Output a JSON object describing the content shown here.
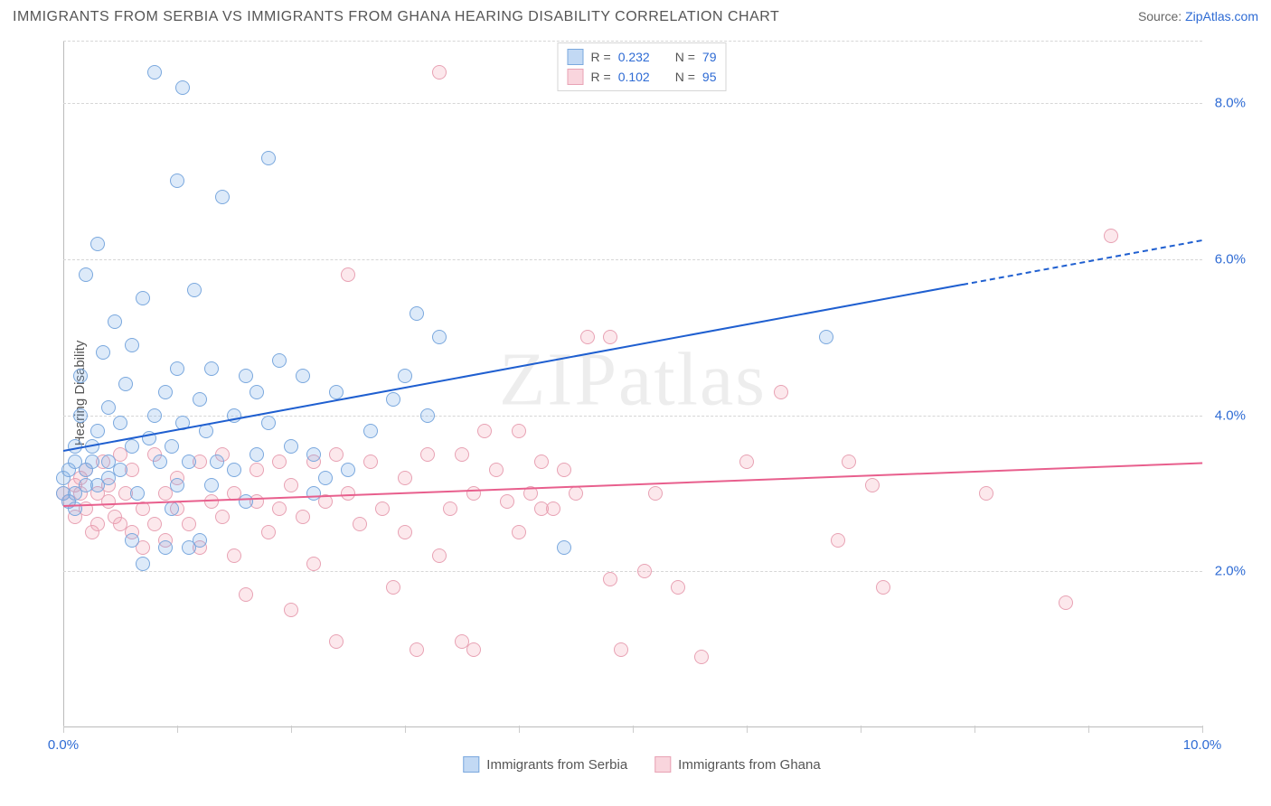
{
  "title": "IMMIGRANTS FROM SERBIA VS IMMIGRANTS FROM GHANA HEARING DISABILITY CORRELATION CHART",
  "source_label": "Source: ",
  "source_name": "ZipAtlas.com",
  "watermark": "ZIPatlas",
  "ylabel": "Hearing Disability",
  "chart": {
    "type": "scatter",
    "xlim": [
      0,
      10
    ],
    "ylim": [
      0,
      8.8
    ],
    "xticks": [
      0.0,
      10.0
    ],
    "xtick_labels": [
      "0.0%",
      "10.0%"
    ],
    "x_minor_ticks": [
      0,
      1,
      2,
      3,
      4,
      5,
      6,
      7,
      8,
      9,
      10
    ],
    "yticks": [
      2.0,
      4.0,
      6.0,
      8.0
    ],
    "ytick_labels": [
      "2.0%",
      "4.0%",
      "6.0%",
      "8.0%"
    ],
    "grid_color": "#d6d6d6",
    "background_color": "#ffffff",
    "marker_size": 16,
    "marker_opacity": 0.25,
    "line_width": 2.5
  },
  "legend_top": {
    "rows": [
      {
        "swatch": "a",
        "r_label": "R =",
        "r_value": "0.232",
        "n_label": "N =",
        "n_value": "79"
      },
      {
        "swatch": "b",
        "r_label": "R =",
        "r_value": "0.102",
        "n_label": "N =",
        "n_value": "95"
      }
    ]
  },
  "legend_bottom": {
    "items": [
      {
        "swatch": "a",
        "label": "Immigrants from Serbia"
      },
      {
        "swatch": "b",
        "label": "Immigrants from Ghana"
      }
    ]
  },
  "series": {
    "a": {
      "name": "Immigrants from Serbia",
      "color": "#7aa8de",
      "fill": "rgba(120,170,230,0.25)",
      "trend": {
        "m": 0.27,
        "b": 3.55,
        "solid_xmax": 7.9,
        "dash_xmax": 10.0,
        "color": "#1f5fd0"
      },
      "points": [
        [
          0.0,
          3.2
        ],
        [
          0.0,
          3.0
        ],
        [
          0.05,
          3.3
        ],
        [
          0.05,
          2.9
        ],
        [
          0.1,
          3.4
        ],
        [
          0.1,
          3.6
        ],
        [
          0.1,
          3.0
        ],
        [
          0.1,
          2.8
        ],
        [
          0.15,
          4.5
        ],
        [
          0.15,
          4.0
        ],
        [
          0.2,
          3.3
        ],
        [
          0.2,
          3.1
        ],
        [
          0.2,
          5.8
        ],
        [
          0.25,
          3.4
        ],
        [
          0.25,
          3.6
        ],
        [
          0.3,
          6.2
        ],
        [
          0.3,
          3.8
        ],
        [
          0.3,
          3.1
        ],
        [
          0.35,
          4.8
        ],
        [
          0.4,
          4.1
        ],
        [
          0.4,
          3.4
        ],
        [
          0.4,
          3.2
        ],
        [
          0.45,
          5.2
        ],
        [
          0.5,
          3.9
        ],
        [
          0.5,
          3.3
        ],
        [
          0.55,
          4.4
        ],
        [
          0.6,
          3.6
        ],
        [
          0.6,
          4.9
        ],
        [
          0.6,
          2.4
        ],
        [
          0.65,
          3.0
        ],
        [
          0.7,
          2.1
        ],
        [
          0.7,
          5.5
        ],
        [
          0.75,
          3.7
        ],
        [
          0.8,
          8.4
        ],
        [
          0.8,
          4.0
        ],
        [
          0.85,
          3.4
        ],
        [
          0.9,
          2.3
        ],
        [
          0.9,
          4.3
        ],
        [
          0.95,
          2.8
        ],
        [
          0.95,
          3.6
        ],
        [
          1.0,
          7.0
        ],
        [
          1.0,
          4.6
        ],
        [
          1.0,
          3.1
        ],
        [
          1.05,
          8.2
        ],
        [
          1.05,
          3.9
        ],
        [
          1.1,
          2.3
        ],
        [
          1.1,
          3.4
        ],
        [
          1.15,
          5.6
        ],
        [
          1.2,
          4.2
        ],
        [
          1.2,
          2.4
        ],
        [
          1.25,
          3.8
        ],
        [
          1.3,
          3.1
        ],
        [
          1.3,
          4.6
        ],
        [
          1.35,
          3.4
        ],
        [
          1.4,
          6.8
        ],
        [
          1.5,
          4.0
        ],
        [
          1.5,
          3.3
        ],
        [
          1.6,
          4.5
        ],
        [
          1.6,
          2.9
        ],
        [
          1.7,
          4.3
        ],
        [
          1.7,
          3.5
        ],
        [
          1.8,
          7.3
        ],
        [
          1.8,
          3.9
        ],
        [
          1.9,
          4.7
        ],
        [
          2.0,
          3.6
        ],
        [
          2.1,
          4.5
        ],
        [
          2.2,
          3.0
        ],
        [
          2.2,
          3.5
        ],
        [
          2.3,
          3.2
        ],
        [
          2.4,
          4.3
        ],
        [
          2.5,
          3.3
        ],
        [
          2.7,
          3.8
        ],
        [
          2.9,
          4.2
        ],
        [
          3.0,
          4.5
        ],
        [
          3.1,
          5.3
        ],
        [
          3.2,
          4.0
        ],
        [
          3.3,
          5.0
        ],
        [
          4.4,
          2.3
        ],
        [
          6.7,
          5.0
        ]
      ]
    },
    "b": {
      "name": "Immigrants from Ghana",
      "color": "#e8a2b4",
      "fill": "rgba(240,150,170,0.22)",
      "trend": {
        "m": 0.055,
        "b": 2.85,
        "solid_xmax": 10.0,
        "dash_xmax": 10.0,
        "color": "#e85f8d"
      },
      "points": [
        [
          0.0,
          3.0
        ],
        [
          0.05,
          2.9
        ],
        [
          0.1,
          3.1
        ],
        [
          0.1,
          2.7
        ],
        [
          0.15,
          3.2
        ],
        [
          0.15,
          3.0
        ],
        [
          0.2,
          2.8
        ],
        [
          0.2,
          3.3
        ],
        [
          0.25,
          2.5
        ],
        [
          0.3,
          3.0
        ],
        [
          0.3,
          2.6
        ],
        [
          0.35,
          3.4
        ],
        [
          0.4,
          2.9
        ],
        [
          0.4,
          3.1
        ],
        [
          0.45,
          2.7
        ],
        [
          0.5,
          3.5
        ],
        [
          0.5,
          2.6
        ],
        [
          0.55,
          3.0
        ],
        [
          0.6,
          2.5
        ],
        [
          0.6,
          3.3
        ],
        [
          0.7,
          2.8
        ],
        [
          0.7,
          2.3
        ],
        [
          0.8,
          3.5
        ],
        [
          0.8,
          2.6
        ],
        [
          0.9,
          3.0
        ],
        [
          0.9,
          2.4
        ],
        [
          1.0,
          2.8
        ],
        [
          1.0,
          3.2
        ],
        [
          1.1,
          2.6
        ],
        [
          1.2,
          3.4
        ],
        [
          1.2,
          2.3
        ],
        [
          1.3,
          2.9
        ],
        [
          1.4,
          2.7
        ],
        [
          1.4,
          3.5
        ],
        [
          1.5,
          2.2
        ],
        [
          1.5,
          3.0
        ],
        [
          1.6,
          1.7
        ],
        [
          1.7,
          2.9
        ],
        [
          1.7,
          3.3
        ],
        [
          1.8,
          2.5
        ],
        [
          1.9,
          3.4
        ],
        [
          1.9,
          2.8
        ],
        [
          2.0,
          3.1
        ],
        [
          2.0,
          1.5
        ],
        [
          2.1,
          2.7
        ],
        [
          2.2,
          3.4
        ],
        [
          2.2,
          2.1
        ],
        [
          2.3,
          2.9
        ],
        [
          2.4,
          3.5
        ],
        [
          2.4,
          1.1
        ],
        [
          2.5,
          5.8
        ],
        [
          2.5,
          3.0
        ],
        [
          2.6,
          2.6
        ],
        [
          2.7,
          3.4
        ],
        [
          2.8,
          2.8
        ],
        [
          2.9,
          1.8
        ],
        [
          3.0,
          3.2
        ],
        [
          3.0,
          2.5
        ],
        [
          3.1,
          1.0
        ],
        [
          3.2,
          3.5
        ],
        [
          3.3,
          8.4
        ],
        [
          3.3,
          2.2
        ],
        [
          3.4,
          2.8
        ],
        [
          3.5,
          3.5
        ],
        [
          3.5,
          1.1
        ],
        [
          3.6,
          3.0
        ],
        [
          3.6,
          1.0
        ],
        [
          3.7,
          3.8
        ],
        [
          3.8,
          3.3
        ],
        [
          3.9,
          2.9
        ],
        [
          4.0,
          3.8
        ],
        [
          4.0,
          2.5
        ],
        [
          4.1,
          3.0
        ],
        [
          4.2,
          2.8
        ],
        [
          4.2,
          3.4
        ],
        [
          4.3,
          2.8
        ],
        [
          4.4,
          3.3
        ],
        [
          4.5,
          3.0
        ],
        [
          4.6,
          5.0
        ],
        [
          4.8,
          5.0
        ],
        [
          4.8,
          1.9
        ],
        [
          4.9,
          1.0
        ],
        [
          5.1,
          2.0
        ],
        [
          5.2,
          3.0
        ],
        [
          5.4,
          1.8
        ],
        [
          5.6,
          0.9
        ],
        [
          6.0,
          3.4
        ],
        [
          6.3,
          4.3
        ],
        [
          6.8,
          2.4
        ],
        [
          6.9,
          3.4
        ],
        [
          7.1,
          3.1
        ],
        [
          7.2,
          1.8
        ],
        [
          8.1,
          3.0
        ],
        [
          8.8,
          1.6
        ],
        [
          9.2,
          6.3
        ]
      ]
    }
  }
}
